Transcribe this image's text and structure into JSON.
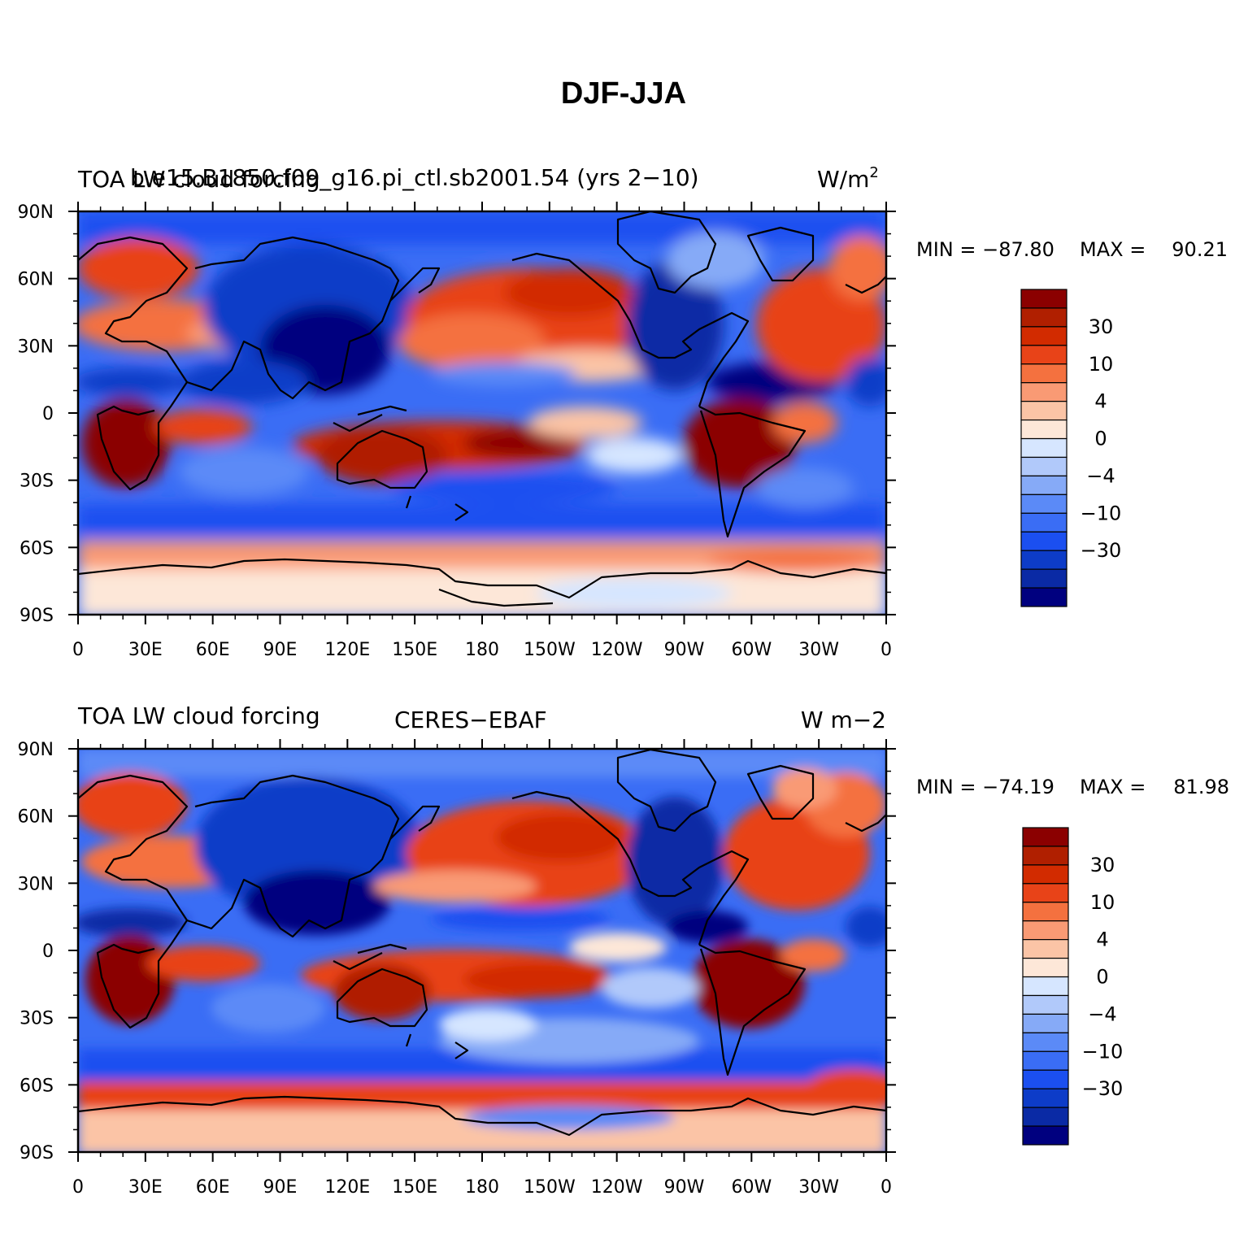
{
  "figure_title": "DJF-JJA",
  "colors": {
    "levels": [
      "#00007f",
      "#0a2aa5",
      "#0d3cc8",
      "#1b4ff0",
      "#3a6df5",
      "#5b8af7",
      "#86aaf7",
      "#b1c9fa",
      "#d6e6ff",
      "#fde7d8",
      "#fbc4a6",
      "#f99a74",
      "#f4713f",
      "#e84318",
      "#d22b00",
      "#b01f00",
      "#8b0000"
    ]
  },
  "colorbar_labels": [
    "30",
    "10",
    "4",
    "0",
    "−4",
    "−10",
    "−30"
  ],
  "lon_labels": [
    "0",
    "30E",
    "60E",
    "90E",
    "120E",
    "150E",
    "180",
    "150W",
    "120W",
    "90W",
    "60W",
    "30W",
    "0"
  ],
  "lat_labels": [
    "90N",
    "60N",
    "30N",
    "0",
    "30S",
    "60S",
    "90S"
  ],
  "panels": [
    {
      "left_title": "TOA LW cloud forcing",
      "center_title": "b.e15.B1850.f09_g16.pi_ctl.sb2001.54 (yrs 2−10)",
      "right_title": "W/m",
      "right_title_sup": "2",
      "min_label": "MIN = −87.80",
      "max_label": "MAX =",
      "max_value": "90.21"
    },
    {
      "left_title": "TOA LW cloud forcing",
      "center_title": "CERES−EBAF",
      "right_title": "W m−2",
      "right_title_sup": "",
      "min_label": "MIN = −74.19",
      "max_label": "MAX =",
      "max_value": "81.98"
    }
  ]
}
